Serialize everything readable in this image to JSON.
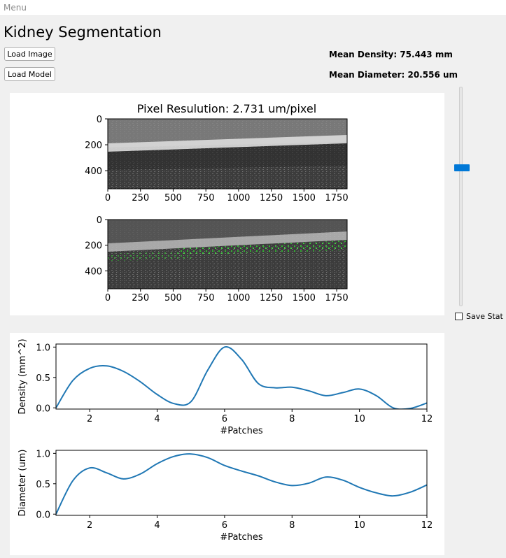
{
  "menubar": {
    "menu_label": "Menu"
  },
  "app": {
    "title": "Kidney Segmentation"
  },
  "buttons": {
    "load_image": "Load Image",
    "load_model": "Load Model"
  },
  "stats": {
    "mean_density": "Mean Density: 75.443  mm",
    "mean_diameter": "Mean Diameter: 20.556 um"
  },
  "image_panel": {
    "title": "Pixel Resulution: 2.731  um/pixel",
    "x_ticks": [
      "0",
      "250",
      "500",
      "750",
      "1000",
      "1250",
      "1500",
      "1750"
    ],
    "y_ticks": [
      "0",
      "200",
      "400"
    ]
  },
  "slider": {
    "value_fraction": 0.37
  },
  "save_stat": {
    "label": "Save Stat",
    "checked": false
  },
  "colors": {
    "accent": "#0078d7",
    "line": "#1f77b4",
    "overlay": "#2ec72e"
  },
  "chart_data": [
    {
      "type": "line",
      "title": "",
      "xlabel": "#Patches",
      "ylabel": "Density (mm^2)",
      "xlim": [
        1,
        12
      ],
      "ylim": [
        -0.02,
        1.05
      ],
      "x_ticks": [
        2,
        4,
        6,
        8,
        10,
        12
      ],
      "y_ticks": [
        0.0,
        0.5,
        1.0
      ],
      "y_tick_labels": [
        "0.0",
        "0.5",
        "1.0"
      ],
      "x": [
        1,
        1.5,
        2,
        2.5,
        3,
        3.5,
        4,
        4.5,
        5,
        5.5,
        6,
        6.5,
        7,
        7.5,
        8,
        8.5,
        9,
        9.5,
        10,
        10.5,
        11,
        11.5,
        12
      ],
      "values": [
        0.0,
        0.45,
        0.65,
        0.69,
        0.6,
        0.43,
        0.22,
        0.07,
        0.1,
        0.62,
        1.0,
        0.8,
        0.4,
        0.33,
        0.34,
        0.28,
        0.2,
        0.25,
        0.31,
        0.2,
        0.0,
        -0.01,
        0.08
      ]
    },
    {
      "type": "line",
      "title": "",
      "xlabel": "#Patches",
      "ylabel": "Diameter (um)",
      "xlim": [
        1,
        12
      ],
      "ylim": [
        -0.02,
        1.05
      ],
      "x_ticks": [
        2,
        4,
        6,
        8,
        10,
        12
      ],
      "y_ticks": [
        0.0,
        0.5,
        1.0
      ],
      "y_tick_labels": [
        "0.0",
        "0.5",
        "1.0"
      ],
      "x": [
        1,
        1.5,
        2,
        2.5,
        3,
        3.5,
        4,
        4.5,
        5,
        5.5,
        6,
        6.5,
        7,
        7.5,
        8,
        8.5,
        9,
        9.5,
        10,
        10.5,
        11,
        11.5,
        12
      ],
      "values": [
        0.0,
        0.55,
        0.76,
        0.68,
        0.58,
        0.66,
        0.83,
        0.95,
        0.99,
        0.93,
        0.8,
        0.71,
        0.63,
        0.53,
        0.47,
        0.51,
        0.61,
        0.56,
        0.44,
        0.35,
        0.3,
        0.36,
        0.48
      ]
    }
  ]
}
